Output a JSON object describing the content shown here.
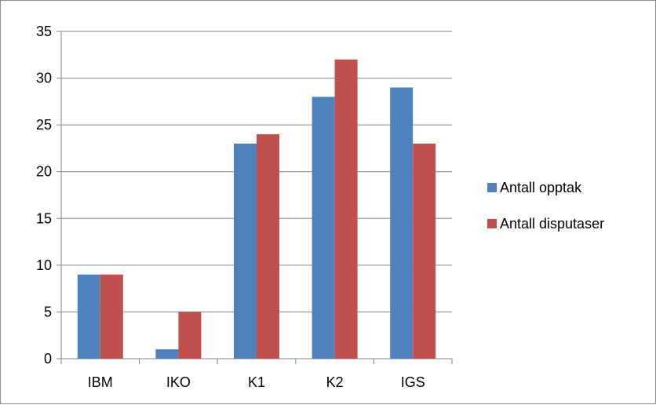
{
  "chart_data": {
    "type": "bar",
    "categories": [
      "IBM",
      "IKO",
      "K1",
      "K2",
      "IGS"
    ],
    "series": [
      {
        "name": "Antall opptak",
        "values": [
          9,
          1,
          23,
          28,
          29
        ],
        "color": "#4f81bd"
      },
      {
        "name": "Antall disputaser",
        "values": [
          9,
          5,
          24,
          32,
          23
        ],
        "color": "#c0504d"
      }
    ],
    "y_ticks": [
      "0",
      "5",
      "10",
      "15",
      "20",
      "25",
      "30",
      "35"
    ],
    "ylim": [
      0,
      35
    ],
    "grid": true,
    "legend_position": "right",
    "gridline_color": "#868686",
    "title": "",
    "xlabel": "",
    "ylabel": ""
  }
}
